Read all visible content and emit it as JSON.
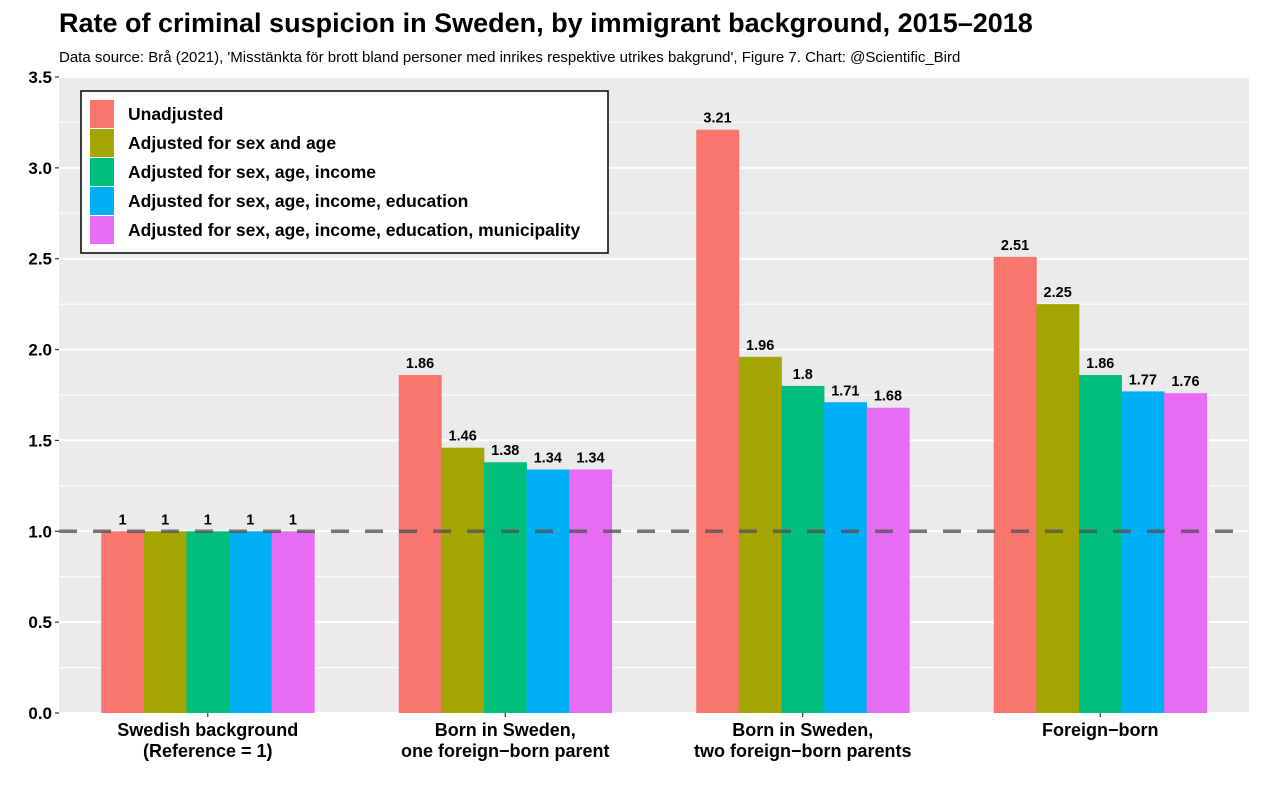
{
  "chart_data": {
    "type": "bar",
    "title": "Rate of criminal suspicion in Sweden, by immigrant background, 2015–2018",
    "subtitle": "Data source: Brå (2021), 'Misstänkta för brott bland personer med inrikes respektive utrikes bakgrund', Figure 7.  Chart: @Scientific_Bird",
    "xlabel": "",
    "ylabel": "",
    "ylim": [
      0,
      3.5
    ],
    "yticks": [
      0.0,
      0.5,
      1.0,
      1.5,
      2.0,
      2.5,
      3.0,
      3.5
    ],
    "ytick_labels": [
      "0.0",
      "0.5",
      "1.0",
      "1.5",
      "2.0",
      "2.5",
      "3.0",
      "3.5"
    ],
    "grid": true,
    "legend_position": "top-left",
    "reference_line": {
      "y": 1.0,
      "style": "dashed",
      "color": "#555555"
    },
    "categories": [
      [
        "Swedish background",
        "(Reference = 1)"
      ],
      [
        "Born in Sweden,",
        "one foreign−born parent"
      ],
      [
        "Born in Sweden,",
        "two foreign−born parents"
      ],
      [
        "Foreign−born"
      ]
    ],
    "series": [
      {
        "name": "Unadjusted",
        "color": "#F8766D",
        "values": [
          1,
          1.86,
          3.21,
          2.51
        ],
        "labels": [
          "1",
          "1.86",
          "3.21",
          "2.51"
        ]
      },
      {
        "name": "Adjusted for sex and age",
        "color": "#A3A500",
        "values": [
          1,
          1.46,
          1.96,
          2.25
        ],
        "labels": [
          "1",
          "1.46",
          "1.96",
          "2.25"
        ]
      },
      {
        "name": "Adjusted for sex, age, income",
        "color": "#00BF7D",
        "values": [
          1,
          1.38,
          1.8,
          1.86
        ],
        "labels": [
          "1",
          "1.38",
          "1.8",
          "1.86"
        ]
      },
      {
        "name": "Adjusted for sex, age, income, education",
        "color": "#00B0F6",
        "values": [
          1,
          1.34,
          1.71,
          1.77
        ],
        "labels": [
          "1",
          "1.34",
          "1.71",
          "1.77"
        ]
      },
      {
        "name": "Adjusted for sex, age, income, education, municipality",
        "color": "#E76BF3",
        "values": [
          1,
          1.34,
          1.68,
          1.76
        ],
        "labels": [
          "1",
          "1.34",
          "1.68",
          "1.76"
        ]
      }
    ]
  }
}
